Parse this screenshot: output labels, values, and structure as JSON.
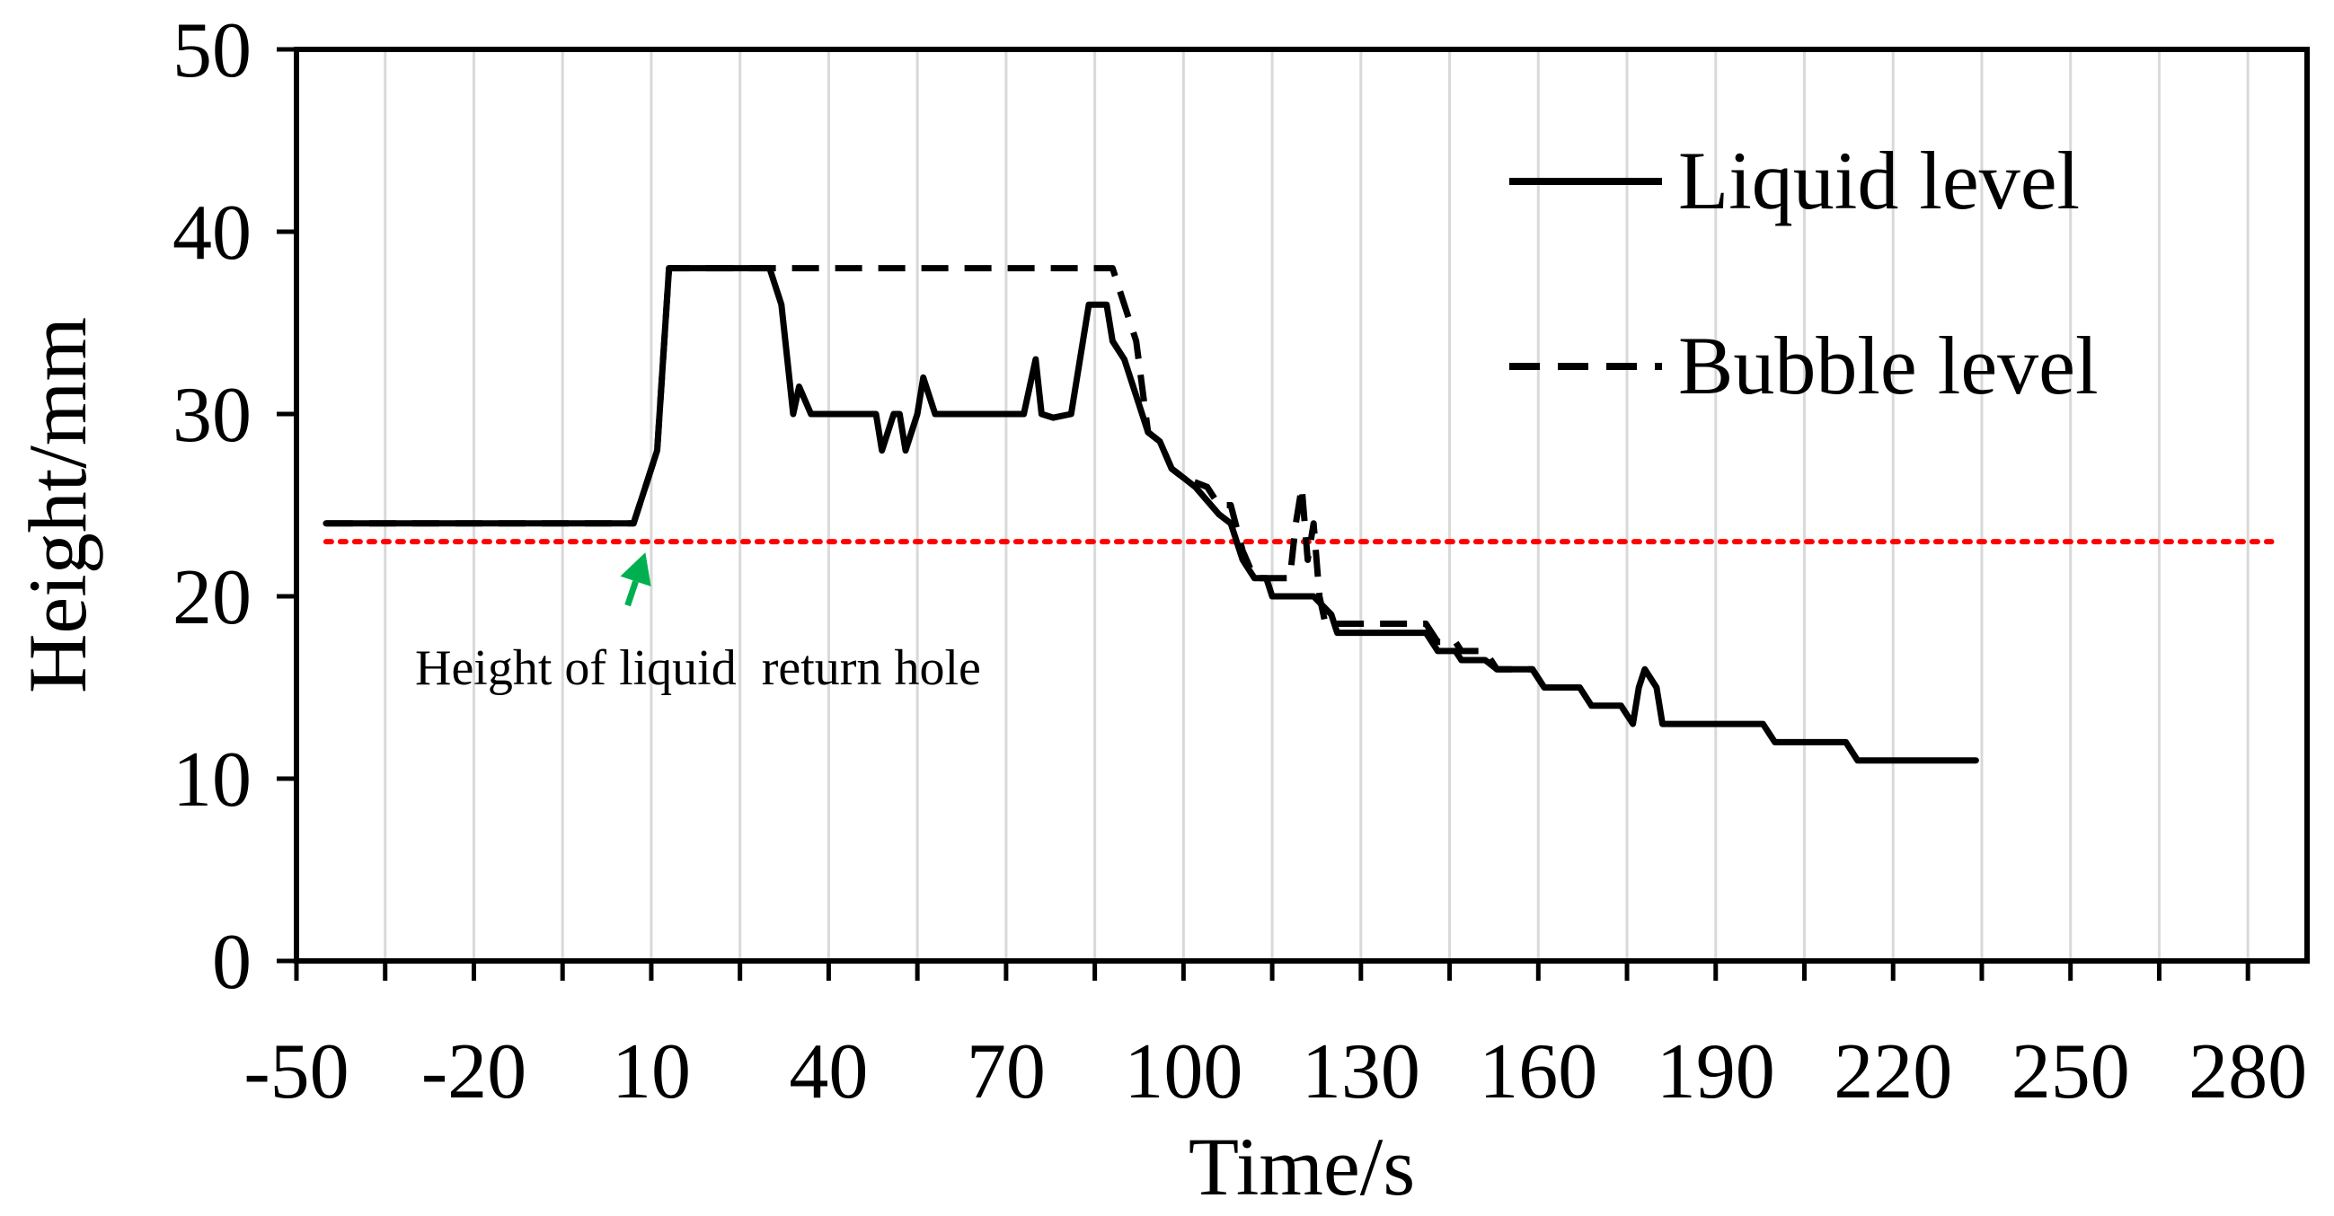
{
  "chart_data": {
    "type": "line",
    "title": "",
    "xlabel": "Time/s",
    "ylabel": "Height/mm",
    "xlim": [
      -50,
      290
    ],
    "ylim": [
      0,
      50
    ],
    "xticks": [
      -50,
      -20,
      10,
      40,
      70,
      100,
      130,
      160,
      190,
      220,
      250,
      280
    ],
    "yticks": [
      0,
      10,
      20,
      30,
      40,
      50
    ],
    "x_minor_step": 15,
    "grid": "vertical",
    "grid_color": "#d9d9d9",
    "legend_position": "top-right",
    "series": [
      {
        "name": "Liquid level",
        "style": "solid",
        "color": "#000000",
        "points": [
          [
            -45,
            24
          ],
          [
            5,
            24
          ],
          [
            7,
            24
          ],
          [
            9,
            26
          ],
          [
            11,
            28
          ],
          [
            12,
            33
          ],
          [
            13,
            38
          ],
          [
            30,
            38
          ],
          [
            32,
            36
          ],
          [
            34,
            30
          ],
          [
            35,
            31.5
          ],
          [
            37,
            30
          ],
          [
            48,
            30
          ],
          [
            49,
            28
          ],
          [
            51,
            30
          ],
          [
            52,
            30
          ],
          [
            53,
            28
          ],
          [
            55,
            30
          ],
          [
            56,
            32
          ],
          [
            58,
            30
          ],
          [
            73,
            30
          ],
          [
            75,
            33
          ],
          [
            76,
            30
          ],
          [
            78,
            29.8
          ],
          [
            81,
            30
          ],
          [
            84,
            36
          ],
          [
            87,
            36
          ],
          [
            88,
            34
          ],
          [
            90,
            33
          ],
          [
            91,
            32
          ],
          [
            94,
            29
          ],
          [
            96,
            28.5
          ],
          [
            98,
            27
          ],
          [
            100,
            26.5
          ],
          [
            102,
            26
          ],
          [
            106,
            24.5
          ],
          [
            108,
            24
          ],
          [
            110,
            22
          ],
          [
            112,
            21
          ],
          [
            114,
            21
          ],
          [
            115,
            20
          ],
          [
            122,
            20
          ],
          [
            125,
            19
          ],
          [
            126,
            18
          ],
          [
            134,
            18
          ],
          [
            141,
            18
          ],
          [
            143,
            17
          ],
          [
            146,
            17
          ],
          [
            147,
            16.5
          ],
          [
            151,
            16.5
          ],
          [
            153,
            16
          ],
          [
            159,
            16
          ],
          [
            161,
            15
          ],
          [
            167,
            15
          ],
          [
            169,
            14
          ],
          [
            174,
            14
          ],
          [
            176,
            13
          ],
          [
            177,
            15
          ],
          [
            178,
            16
          ],
          [
            180,
            15
          ],
          [
            181,
            13
          ],
          [
            198,
            13
          ],
          [
            200,
            12
          ],
          [
            212,
            12
          ],
          [
            214,
            11
          ],
          [
            234,
            11
          ]
        ]
      },
      {
        "name": "Bubble level",
        "style": "dashed",
        "color": "#000000",
        "points": [
          [
            -45,
            24
          ],
          [
            5,
            24
          ],
          [
            7,
            24
          ],
          [
            9,
            26
          ],
          [
            11,
            28
          ],
          [
            12,
            33
          ],
          [
            13,
            38
          ],
          [
            30,
            38
          ],
          [
            88,
            38
          ],
          [
            89,
            37
          ],
          [
            90,
            36
          ],
          [
            92,
            34
          ],
          [
            94,
            29
          ],
          [
            96,
            28.5
          ],
          [
            98,
            27
          ],
          [
            100,
            26.5
          ],
          [
            104,
            26
          ],
          [
            106,
            25
          ],
          [
            108,
            25
          ],
          [
            110,
            22.5
          ],
          [
            112,
            21
          ],
          [
            118,
            21
          ],
          [
            119,
            24
          ],
          [
            120,
            26
          ],
          [
            121,
            22
          ],
          [
            122,
            24
          ],
          [
            123,
            20
          ],
          [
            124,
            18.5
          ],
          [
            134,
            18.5
          ],
          [
            141,
            18.5
          ],
          [
            143,
            17.5
          ],
          [
            146,
            17.5
          ],
          [
            147,
            17
          ],
          [
            151,
            17
          ],
          [
            153,
            16
          ],
          [
            159,
            16
          ],
          [
            161,
            15
          ]
        ]
      },
      {
        "name": "Height of liquid return hole",
        "style": "dotted",
        "color": "#ff0000",
        "points": [
          [
            -45,
            23
          ],
          [
            284,
            23
          ]
        ]
      }
    ],
    "annotations": [
      {
        "text": "Height of liquid  return hole",
        "arrow_color": "#00b050",
        "arrow_target": [
          9,
          23
        ],
        "arrow_tail": [
          6,
          19.5
        ]
      }
    ]
  }
}
